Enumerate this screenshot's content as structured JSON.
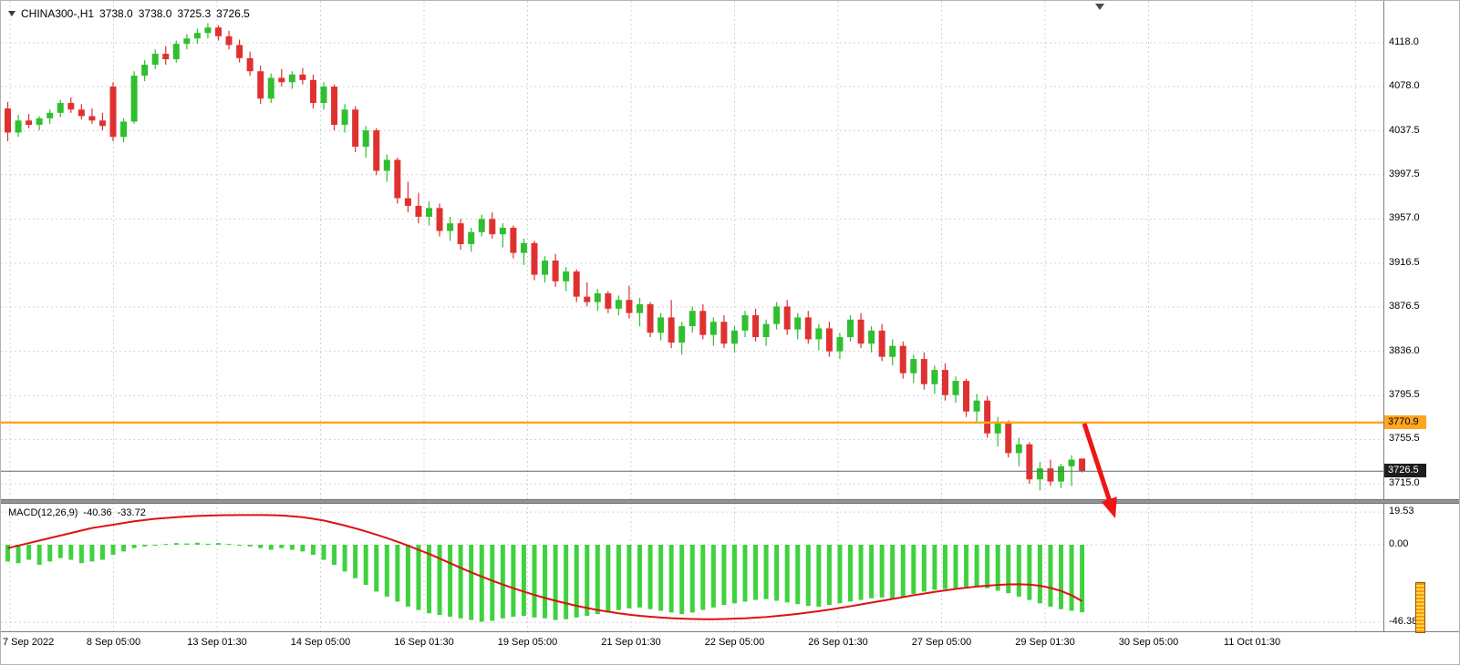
{
  "symbol_bar": {
    "symbol_period": "CHINA300-,H1",
    "open": "3738.0",
    "high": "3738.0",
    "low": "3725.3",
    "close": "3726.5"
  },
  "chart_data": {
    "type": "candlestick",
    "title": "CHINA300-,H1",
    "timeframe": "H1",
    "price_axis": {
      "ticks": [
        "4118.0",
        "4078.0",
        "4037.5",
        "3997.5",
        "3957.0",
        "3916.5",
        "3876.5",
        "3836.0",
        "3795.5",
        "3755.5",
        "3715.0"
      ]
    },
    "time_ticks": [
      "7 Sep 2022",
      "8 Sep 05:00",
      "13 Sep 01:30",
      "14 Sep 05:00",
      "16 Sep 01:30",
      "19 Sep 05:00",
      "21 Sep 01:30",
      "22 Sep 05:00",
      "26 Sep 01:30",
      "27 Sep 05:00",
      "29 Sep 01:30",
      "30 Sep 05:00",
      "11 Oct 01:30"
    ],
    "hline": {
      "price": 3770.9,
      "label": "3770.9"
    },
    "current_price": {
      "value": 3726.5,
      "label": "3726.5"
    },
    "candles": [
      [
        4058,
        4064,
        4028,
        4036
      ],
      [
        4036,
        4052,
        4032,
        4047
      ],
      [
        4047,
        4053,
        4040,
        4043
      ],
      [
        4043,
        4051,
        4038,
        4049
      ],
      [
        4049,
        4057,
        4044,
        4054
      ],
      [
        4054,
        4066,
        4050,
        4063
      ],
      [
        4063,
        4068,
        4054,
        4057
      ],
      [
        4057,
        4062,
        4048,
        4051
      ],
      [
        4051,
        4058,
        4044,
        4047
      ],
      [
        4047,
        4054,
        4038,
        4042
      ],
      [
        4078,
        4082,
        4028,
        4032
      ],
      [
        4032,
        4049,
        4027,
        4046
      ],
      [
        4046,
        4092,
        4044,
        4088
      ],
      [
        4088,
        4102,
        4083,
        4098
      ],
      [
        4098,
        4112,
        4094,
        4108
      ],
      [
        4108,
        4115,
        4098,
        4103
      ],
      [
        4103,
        4120,
        4100,
        4117
      ],
      [
        4117,
        4126,
        4112,
        4122
      ],
      [
        4122,
        4131,
        4117,
        4127
      ],
      [
        4127,
        4136,
        4122,
        4132
      ],
      [
        4132,
        4134,
        4120,
        4124
      ],
      [
        4124,
        4129,
        4112,
        4116
      ],
      [
        4116,
        4121,
        4100,
        4104
      ],
      [
        4104,
        4110,
        4088,
        4092
      ],
      [
        4092,
        4097,
        4062,
        4067
      ],
      [
        4067,
        4090,
        4063,
        4086
      ],
      [
        4086,
        4094,
        4078,
        4082
      ],
      [
        4082,
        4092,
        4076,
        4089
      ],
      [
        4089,
        4095,
        4080,
        4084
      ],
      [
        4084,
        4089,
        4058,
        4063
      ],
      [
        4063,
        4082,
        4057,
        4078
      ],
      [
        4078,
        4080,
        4038,
        4043
      ],
      [
        4043,
        4062,
        4036,
        4057
      ],
      [
        4057,
        4060,
        4018,
        4023
      ],
      [
        4023,
        4042,
        4013,
        4038
      ],
      [
        4038,
        4040,
        3997,
        4001
      ],
      [
        4001,
        4016,
        3991,
        4011
      ],
      [
        4011,
        4013,
        3971,
        3976
      ],
      [
        3976,
        3991,
        3963,
        3969
      ],
      [
        3969,
        3981,
        3953,
        3959
      ],
      [
        3959,
        3973,
        3951,
        3967
      ],
      [
        3967,
        3971,
        3941,
        3946
      ],
      [
        3946,
        3959,
        3937,
        3953
      ],
      [
        3953,
        3957,
        3929,
        3934
      ],
      [
        3934,
        3949,
        3927,
        3945
      ],
      [
        3945,
        3961,
        3941,
        3957
      ],
      [
        3957,
        3963,
        3939,
        3943
      ],
      [
        3943,
        3953,
        3931,
        3949
      ],
      [
        3949,
        3951,
        3921,
        3926
      ],
      [
        3926,
        3939,
        3915,
        3935
      ],
      [
        3935,
        3937,
        3901,
        3906
      ],
      [
        3906,
        3923,
        3899,
        3919
      ],
      [
        3919,
        3925,
        3895,
        3900
      ],
      [
        3900,
        3913,
        3891,
        3909
      ],
      [
        3909,
        3911,
        3881,
        3886
      ],
      [
        3886,
        3899,
        3877,
        3881
      ],
      [
        3881,
        3893,
        3873,
        3889
      ],
      [
        3889,
        3891,
        3871,
        3875
      ],
      [
        3875,
        3887,
        3869,
        3883
      ],
      [
        3883,
        3896,
        3866,
        3871
      ],
      [
        3871,
        3885,
        3859,
        3879
      ],
      [
        3879,
        3881,
        3849,
        3853
      ],
      [
        3853,
        3871,
        3846,
        3867
      ],
      [
        3867,
        3883,
        3839,
        3844
      ],
      [
        3844,
        3863,
        3833,
        3859
      ],
      [
        3859,
        3877,
        3853,
        3873
      ],
      [
        3873,
        3879,
        3847,
        3851
      ],
      [
        3851,
        3867,
        3841,
        3863
      ],
      [
        3863,
        3869,
        3839,
        3843
      ],
      [
        3843,
        3859,
        3835,
        3855
      ],
      [
        3855,
        3873,
        3849,
        3869
      ],
      [
        3869,
        3875,
        3845,
        3849
      ],
      [
        3849,
        3865,
        3841,
        3861
      ],
      [
        3861,
        3881,
        3856,
        3877
      ],
      [
        3877,
        3883,
        3851,
        3856
      ],
      [
        3856,
        3871,
        3847,
        3867
      ],
      [
        3867,
        3873,
        3843,
        3847
      ],
      [
        3847,
        3861,
        3837,
        3857
      ],
      [
        3857,
        3863,
        3831,
        3836
      ],
      [
        3836,
        3853,
        3829,
        3849
      ],
      [
        3849,
        3869,
        3845,
        3865
      ],
      [
        3865,
        3871,
        3839,
        3843
      ],
      [
        3843,
        3859,
        3835,
        3855
      ],
      [
        3855,
        3861,
        3827,
        3831
      ],
      [
        3831,
        3847,
        3823,
        3841
      ],
      [
        3841,
        3845,
        3811,
        3816
      ],
      [
        3816,
        3833,
        3807,
        3829
      ],
      [
        3829,
        3835,
        3801,
        3806
      ],
      [
        3806,
        3823,
        3797,
        3819
      ],
      [
        3819,
        3825,
        3791,
        3796
      ],
      [
        3796,
        3813,
        3789,
        3809
      ],
      [
        3809,
        3811,
        3776,
        3781
      ],
      [
        3781,
        3797,
        3771,
        3791
      ],
      [
        3791,
        3795,
        3757,
        3761
      ],
      [
        3761,
        3776,
        3749,
        3771
      ],
      [
        3771,
        3773,
        3739,
        3743
      ],
      [
        3743,
        3757,
        3731,
        3751
      ],
      [
        3751,
        3753,
        3715,
        3719
      ],
      [
        3719,
        3735,
        3709,
        3729
      ],
      [
        3729,
        3737,
        3713,
        3717
      ],
      [
        3717,
        3733,
        3711,
        3731
      ],
      [
        3731,
        3741,
        3713,
        3737
      ],
      [
        3738,
        3738,
        3725.3,
        3726.5
      ]
    ],
    "macd": {
      "name": "MACD(12,26,9)",
      "value_macd": "-40.36",
      "value_signal": "-33.72",
      "ticks": [
        "19.53",
        "0.00",
        "-46.38"
      ],
      "histogram": [
        -10,
        -11,
        -9,
        -12,
        -10,
        -8,
        -9,
        -11,
        -10,
        -9,
        -6,
        -4,
        -2,
        -1,
        -0.5,
        0.5,
        1,
        0.8,
        1.2,
        0.6,
        1,
        0.5,
        -0.5,
        -1,
        -2,
        -3,
        -2,
        -3,
        -4,
        -6,
        -9,
        -12,
        -16,
        -20,
        -24,
        -28,
        -31,
        -34,
        -37,
        -39,
        -41,
        -42,
        -43,
        -44,
        -45,
        -46,
        -45.5,
        -44,
        -43,
        -42.5,
        -43.5,
        -44,
        -45,
        -44.5,
        -43.5,
        -42.5,
        -41.5,
        -40.5,
        -39,
        -38,
        -37.5,
        -38.5,
        -39.5,
        -40.5,
        -41.5,
        -40.5,
        -39,
        -37.5,
        -36,
        -35,
        -34,
        -33,
        -32.5,
        -33.5,
        -34.5,
        -35.5,
        -36.5,
        -37,
        -36,
        -35,
        -34,
        -33,
        -32,
        -31.5,
        -32.5,
        -31,
        -29.5,
        -28,
        -27,
        -26.5,
        -26,
        -25.5,
        -25,
        -26,
        -27.5,
        -29,
        -31,
        -33,
        -35,
        -37,
        -38.5,
        -39.5,
        -40.36
      ],
      "signal": [
        -2,
        -0.5,
        1,
        2.5,
        4,
        5.5,
        7,
        8.5,
        10,
        11,
        12,
        13,
        14,
        14.8,
        15.5,
        16,
        16.5,
        16.9,
        17.2,
        17.4,
        17.6,
        17.7,
        17.8,
        17.8,
        17.8,
        17.7,
        17.5,
        17,
        16.5,
        15.5,
        14.5,
        13,
        11.5,
        9.8,
        8,
        6,
        4,
        1.8,
        -0.5,
        -3,
        -5.5,
        -8.2,
        -11,
        -13.8,
        -16.5,
        -19,
        -21.5,
        -23.8,
        -26,
        -28,
        -30,
        -31.8,
        -33.5,
        -35,
        -36.5,
        -37.8,
        -39,
        -40,
        -41,
        -41.8,
        -42.5,
        -43,
        -43.5,
        -43.9,
        -44.2,
        -44.4,
        -44.5,
        -44.5,
        -44.4,
        -44.2,
        -44,
        -43.6,
        -43.2,
        -42.6,
        -42,
        -41.3,
        -40.5,
        -39.7,
        -38.8,
        -37.8,
        -36.8,
        -35.7,
        -34.6,
        -33.5,
        -32.4,
        -31.3,
        -30.2,
        -29.2,
        -28.2,
        -27.3,
        -26.4,
        -25.7,
        -25,
        -24.5,
        -24,
        -23.7,
        -23.6,
        -23.8,
        -24.5,
        -25.8,
        -27.6,
        -30.2,
        -33.72
      ]
    }
  },
  "colors": {
    "up": "#2fbf2f",
    "down": "#e03131",
    "macd_bar": "#3fd23f",
    "signal": "#dd1111",
    "hline": "#ffa520",
    "current_price_line": "#666666",
    "grid": "#d4d4d4",
    "arrow": "#f01414",
    "axis_text": "#000000"
  }
}
